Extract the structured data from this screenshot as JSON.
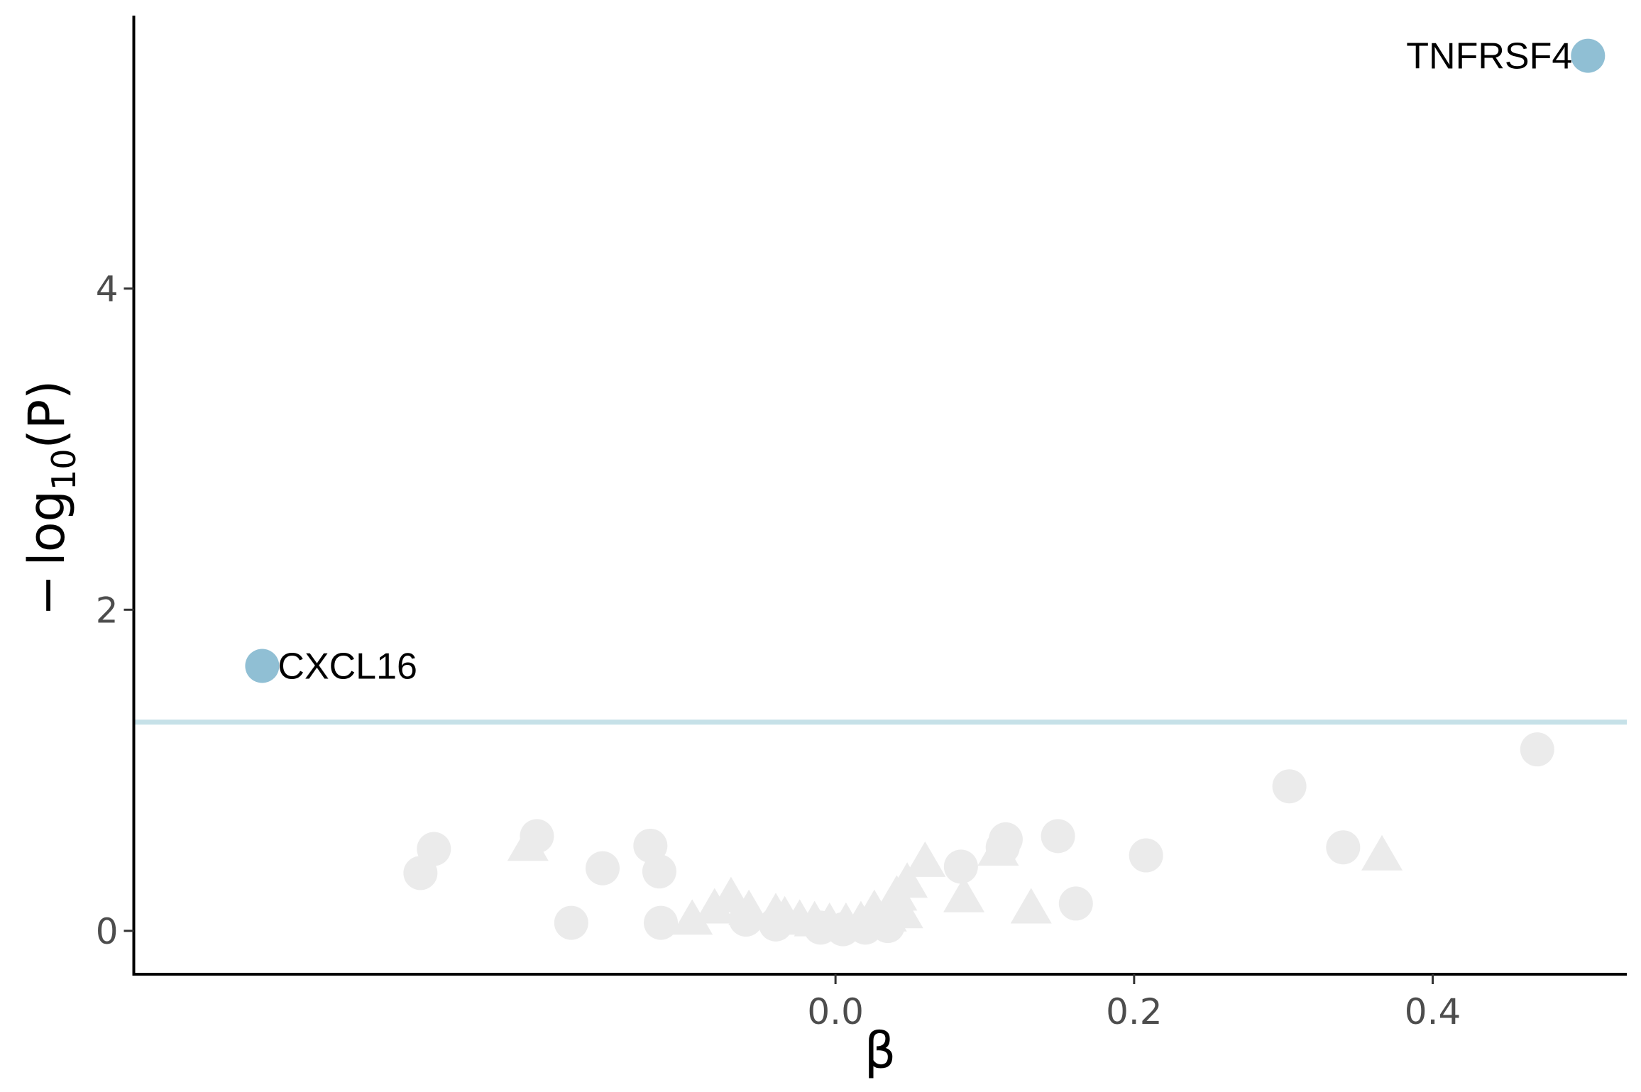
{
  "chart_data": {
    "type": "scatter",
    "title": "",
    "xlabel": "β",
    "ylabel": {
      "minus": "−",
      "base": "log",
      "subscript": "10",
      "arg": "(P)"
    },
    "xlim": [
      -0.47,
      0.53
    ],
    "ylim": [
      -0.27,
      5.7
    ],
    "x_ticks": [
      0.0,
      0.2,
      0.4
    ],
    "x_tick_labels": [
      "0.0",
      "0.2",
      "0.4"
    ],
    "y_ticks": [
      0,
      2,
      4
    ],
    "y_tick_labels": [
      "0",
      "2",
      "4"
    ],
    "grid": false,
    "legend": "none",
    "threshold": {
      "y": 1.3,
      "color": "#c6e1e8"
    },
    "colors": {
      "highlight": "#90bfd4",
      "background_points": "#ebebeb",
      "axis": "#000000",
      "tick_text": "#4d4d4d"
    },
    "highlighted": [
      {
        "x": 0.504,
        "y": 5.45,
        "label": "TNFRSF4",
        "label_side": "left"
      },
      {
        "x": -0.384,
        "y": 1.65,
        "label": "CXCL16",
        "label_side": "right"
      }
    ],
    "series": [
      {
        "shape": "circle",
        "points": [
          [
            0.47,
            1.13
          ],
          [
            0.304,
            0.9
          ],
          [
            0.34,
            0.52
          ],
          [
            0.208,
            0.47
          ],
          [
            0.149,
            0.59
          ],
          [
            0.161,
            0.17
          ],
          [
            0.114,
            0.57
          ],
          [
            0.112,
            0.52
          ],
          [
            0.084,
            0.4
          ],
          [
            -0.269,
            0.51
          ],
          [
            -0.278,
            0.36
          ],
          [
            -0.2,
            0.59
          ],
          [
            -0.124,
            0.53
          ],
          [
            -0.156,
            0.39
          ],
          [
            -0.118,
            0.37
          ],
          [
            -0.177,
            0.05
          ],
          [
            -0.117,
            0.05
          ],
          [
            -0.06,
            0.07
          ],
          [
            -0.04,
            0.04
          ],
          [
            -0.01,
            0.02
          ],
          [
            0.005,
            0.01
          ],
          [
            0.02,
            0.02
          ],
          [
            0.035,
            0.03
          ]
        ]
      },
      {
        "shape": "triangle",
        "points": [
          [
            0.366,
            0.46
          ],
          [
            0.131,
            0.13
          ],
          [
            0.109,
            0.49
          ],
          [
            0.06,
            0.42
          ],
          [
            0.086,
            0.2
          ],
          [
            0.048,
            0.29
          ],
          [
            0.041,
            0.21
          ],
          [
            0.036,
            0.13
          ],
          [
            0.034,
            0.08
          ],
          [
            0.028,
            0.06
          ],
          [
            0.017,
            0.05
          ],
          [
            0.007,
            0.04
          ],
          [
            -0.004,
            0.04
          ],
          [
            -0.014,
            0.05
          ],
          [
            -0.024,
            0.06
          ],
          [
            -0.034,
            0.08
          ],
          [
            -0.04,
            0.1
          ],
          [
            -0.058,
            0.12
          ],
          [
            -0.07,
            0.2
          ],
          [
            -0.081,
            0.13
          ],
          [
            -0.096,
            0.06
          ],
          [
            -0.206,
            0.52
          ],
          [
            0.045,
            0.1
          ],
          [
            0.026,
            0.12
          ]
        ]
      }
    ]
  }
}
